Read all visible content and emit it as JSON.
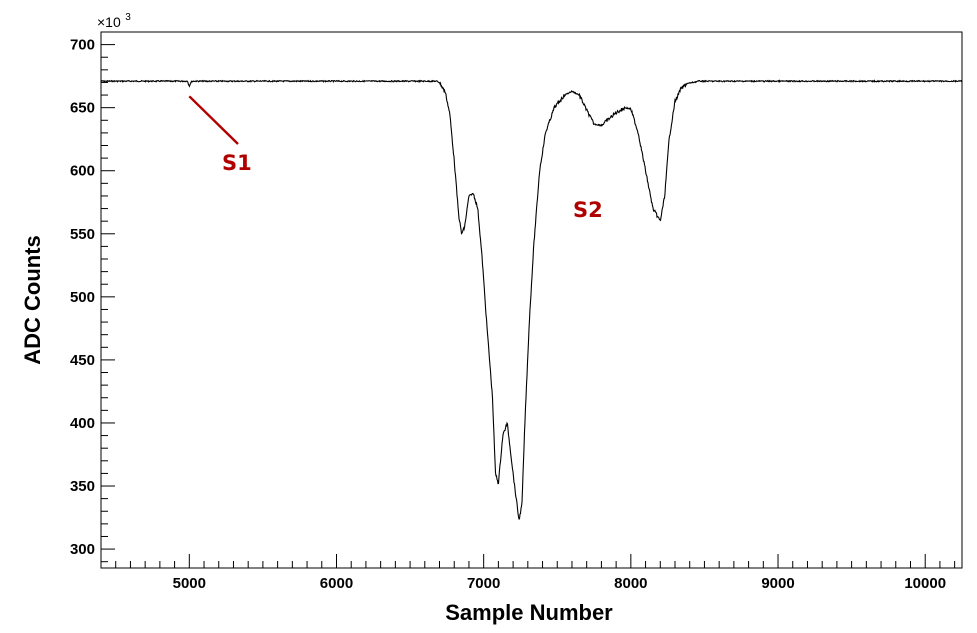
{
  "chart_data": {
    "type": "line",
    "title": "",
    "xlabel": "Sample Number",
    "ylabel": "ADC Counts",
    "y_multiplier": "×10",
    "y_multiplier_exp": "3",
    "xlim": [
      4400,
      10250
    ],
    "ylim": [
      285,
      710
    ],
    "x_ticks": [
      5000,
      6000,
      7000,
      8000,
      9000,
      10000
    ],
    "x_tick_labels": [
      "5000",
      "6000",
      "7000",
      "8000",
      "9000",
      "10000"
    ],
    "y_ticks": [
      300,
      350,
      400,
      450,
      500,
      550,
      600,
      650,
      700
    ],
    "y_tick_labels": [
      "300",
      "350",
      "400",
      "450",
      "500",
      "550",
      "600",
      "650",
      "700"
    ],
    "grid": false,
    "series": [
      {
        "color": "#000000",
        "x": [
          4400,
          4990,
          5000,
          5010,
          5020,
          6680,
          6700,
          6740,
          6770,
          6800,
          6830,
          6850,
          6870,
          6900,
          6930,
          6960,
          6990,
          7020,
          7060,
          7080,
          7100,
          7130,
          7160,
          7180,
          7210,
          7240,
          7260,
          7280,
          7310,
          7340,
          7380,
          7420,
          7480,
          7550,
          7600,
          7650,
          7700,
          7750,
          7800,
          7840,
          7900,
          7960,
          8000,
          8050,
          8100,
          8150,
          8200,
          8230,
          8260,
          8300,
          8340,
          8380,
          8420,
          8460,
          8500,
          10250
        ],
        "y": [
          671,
          671,
          667,
          670,
          671,
          671,
          670,
          662,
          645,
          608,
          565,
          550,
          555,
          580,
          582,
          570,
          530,
          480,
          420,
          360,
          352,
          390,
          400,
          380,
          350,
          323,
          335,
          400,
          480,
          540,
          600,
          630,
          650,
          660,
          663,
          660,
          648,
          637,
          636,
          640,
          646,
          650,
          649,
          630,
          600,
          570,
          560,
          580,
          625,
          655,
          665,
          669,
          670,
          671,
          671,
          671
        ]
      }
    ],
    "annotations": [
      {
        "text": "S1",
        "color": "#b00000"
      },
      {
        "text": "S2",
        "color": "#b00000"
      }
    ]
  }
}
